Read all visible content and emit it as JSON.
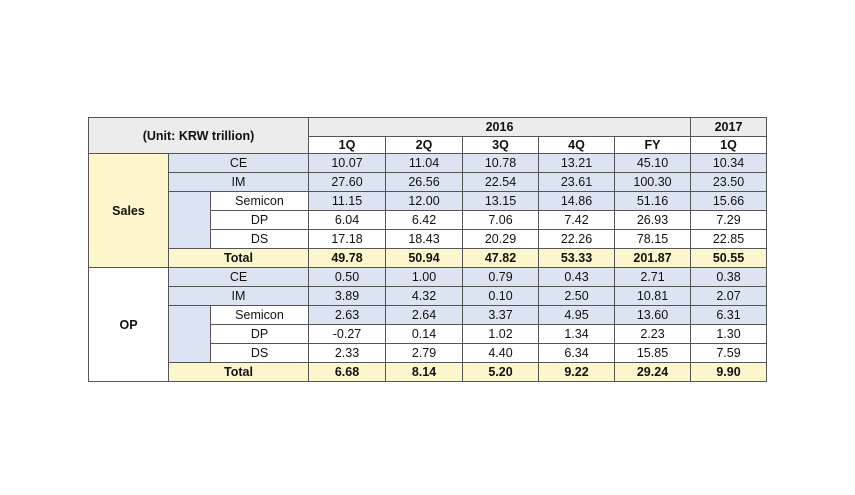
{
  "header": {
    "unit": "(Unit: KRW trillion)",
    "year_2016": "2016",
    "year_2017": "2017",
    "columns": [
      "1Q",
      "2Q",
      "3Q",
      "4Q",
      "FY",
      "1Q"
    ]
  },
  "groups": [
    {
      "label": "Sales",
      "rows": [
        {
          "label": "CE",
          "values": [
            "10.07",
            "11.04",
            "10.78",
            "13.21",
            "45.10",
            "10.34"
          ]
        },
        {
          "label": "IM",
          "values": [
            "27.60",
            "26.56",
            "22.54",
            "23.61",
            "100.30",
            "23.50"
          ]
        },
        {
          "label": "Semicon",
          "values": [
            "11.15",
            "12.00",
            "13.15",
            "14.86",
            "51.16",
            "15.66"
          ]
        },
        {
          "label": "DP",
          "values": [
            "6.04",
            "6.42",
            "7.06",
            "7.42",
            "26.93",
            "7.29"
          ]
        },
        {
          "label": "DS",
          "values": [
            "17.18",
            "18.43",
            "20.29",
            "22.26",
            "78.15",
            "22.85"
          ]
        },
        {
          "label": "Total",
          "values": [
            "49.78",
            "50.94",
            "47.82",
            "53.33",
            "201.87",
            "50.55"
          ]
        }
      ]
    },
    {
      "label": "OP",
      "rows": [
        {
          "label": "CE",
          "values": [
            "0.50",
            "1.00",
            "0.79",
            "0.43",
            "2.71",
            "0.38"
          ]
        },
        {
          "label": "IM",
          "values": [
            "3.89",
            "4.32",
            "0.10",
            "2.50",
            "10.81",
            "2.07"
          ]
        },
        {
          "label": "Semicon",
          "values": [
            "2.63",
            "2.64",
            "3.37",
            "4.95",
            "13.60",
            "6.31"
          ]
        },
        {
          "label": "DP",
          "values": [
            "-0.27",
            "0.14",
            "1.02",
            "1.34",
            "2.23",
            "1.30"
          ]
        },
        {
          "label": "DS",
          "values": [
            "2.33",
            "2.79",
            "4.40",
            "6.34",
            "15.85",
            "7.59"
          ]
        },
        {
          "label": "Total",
          "values": [
            "6.68",
            "8.14",
            "5.20",
            "9.22",
            "29.24",
            "9.90"
          ]
        }
      ]
    }
  ]
}
